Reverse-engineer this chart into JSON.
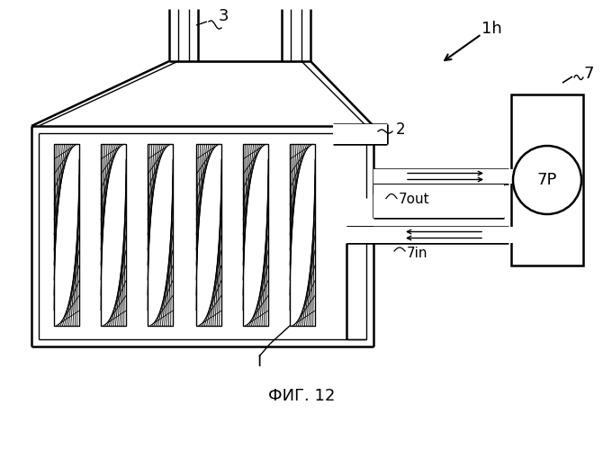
{
  "bg_color": "#ffffff",
  "lc": "#000000",
  "lw": 1.8,
  "lw_thin": 1.0,
  "fig_width": 6.7,
  "fig_height": 5.0,
  "title": "ФИГ. 12",
  "label_3": "3",
  "label_1h": "1h",
  "label_2": "2",
  "label_7": "7",
  "label_7out": "7out",
  "label_7in": "7in",
  "label_7P": "7P",
  "label_I": "I"
}
